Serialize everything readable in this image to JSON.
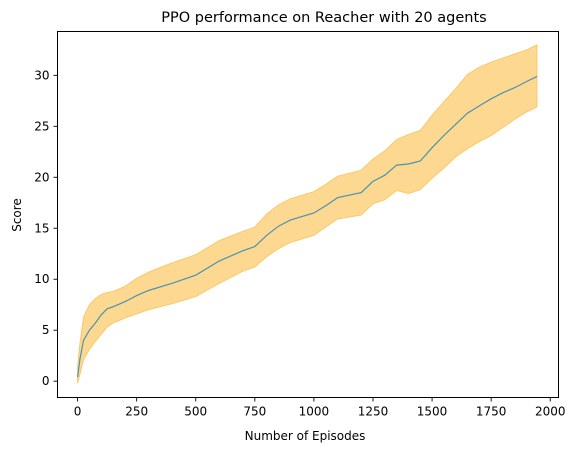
{
  "chart_data": {
    "type": "line",
    "title": "PPO performance on Reacher with 20 agents",
    "xlabel": "Number of Episodes",
    "ylabel": "Score",
    "xlim": [
      -85,
      2035
    ],
    "ylim": [
      -1.6,
      34.3
    ],
    "xticks": [
      0,
      250,
      500,
      750,
      1000,
      1250,
      1500,
      1750,
      2000
    ],
    "xtick_labels": [
      "0",
      "250",
      "500",
      "750",
      "1000",
      "1250",
      "1500",
      "1750",
      "2000"
    ],
    "yticks": [
      0,
      5,
      10,
      15,
      20,
      25,
      30
    ],
    "ytick_labels": [
      "0",
      "5",
      "10",
      "15",
      "20",
      "25",
      "30"
    ],
    "grid": false,
    "legend": "none",
    "series": [
      {
        "kind": "mean",
        "color": "#4a93b3",
        "x": [
          0,
          10,
          25,
          50,
          75,
          100,
          125,
          150,
          200,
          250,
          300,
          400,
          500,
          600,
          700,
          750,
          800,
          850,
          900,
          1000,
          1050,
          1100,
          1200,
          1250,
          1300,
          1350,
          1400,
          1450,
          1500,
          1550,
          1600,
          1650,
          1700,
          1750,
          1800,
          1850,
          1900,
          1944
        ],
        "y": [
          0.4,
          2.2,
          4.0,
          5.0,
          5.7,
          6.5,
          7.1,
          7.3,
          7.8,
          8.4,
          8.9,
          9.6,
          10.4,
          11.8,
          12.8,
          13.2,
          14.3,
          15.2,
          15.8,
          16.5,
          17.2,
          18.0,
          18.5,
          19.6,
          20.2,
          21.2,
          21.3,
          21.6,
          22.9,
          24.1,
          25.2,
          26.3,
          27.0,
          27.7,
          28.3,
          28.8,
          29.4,
          29.9
        ]
      },
      {
        "kind": "band",
        "color": "#fdd890",
        "edge_color": "#fbc25a",
        "x": [
          0,
          10,
          25,
          50,
          75,
          100,
          125,
          150,
          200,
          250,
          300,
          400,
          500,
          600,
          700,
          750,
          800,
          850,
          900,
          1000,
          1050,
          1100,
          1200,
          1250,
          1300,
          1350,
          1400,
          1450,
          1500,
          1550,
          1600,
          1650,
          1700,
          1750,
          1800,
          1850,
          1900,
          1944
        ],
        "y_upper": [
          1.5,
          3.8,
          6.3,
          7.5,
          8.1,
          8.5,
          8.7,
          8.8,
          9.3,
          10.1,
          10.7,
          11.6,
          12.4,
          13.8,
          14.7,
          15.1,
          16.4,
          17.3,
          17.9,
          18.6,
          19.3,
          20.1,
          20.7,
          21.8,
          22.6,
          23.7,
          24.2,
          24.6,
          26.1,
          27.4,
          28.7,
          30.1,
          30.8,
          31.3,
          31.7,
          32.1,
          32.5,
          33.0
        ],
        "y_lower": [
          -0.2,
          0.7,
          2.1,
          3.1,
          3.9,
          4.6,
          5.3,
          5.7,
          6.2,
          6.6,
          7.0,
          7.6,
          8.3,
          9.6,
          10.8,
          11.2,
          12.2,
          13.0,
          13.6,
          14.3,
          15.1,
          15.9,
          16.3,
          17.4,
          17.8,
          18.7,
          18.4,
          18.8,
          19.9,
          20.9,
          22.0,
          22.8,
          23.5,
          24.1,
          24.9,
          25.7,
          26.4,
          26.9
        ]
      }
    ]
  }
}
